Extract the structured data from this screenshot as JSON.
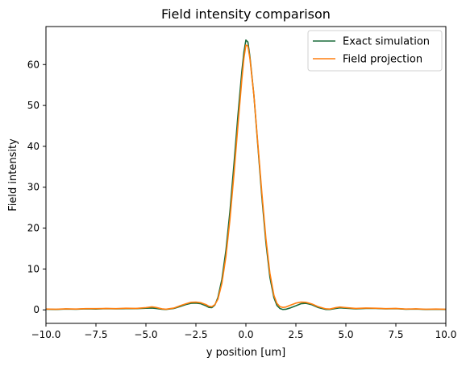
{
  "chart_data": {
    "type": "line",
    "title": "Field intensity comparison",
    "xlabel": "y position [um]",
    "ylabel": "Field intensity",
    "xlim": [
      -10,
      10
    ],
    "ylim": [
      -3.3,
      69.3
    ],
    "xticks": [
      -10,
      -7.5,
      -5,
      -2.5,
      0,
      2.5,
      5,
      7.5,
      10
    ],
    "xtick_labels": [
      "−10.0",
      "−7.5",
      "−5.0",
      "−2.5",
      "0.0",
      "2.5",
      "5.0",
      "7.5",
      "10.0"
    ],
    "yticks": [
      0,
      10,
      20,
      30,
      40,
      50,
      60
    ],
    "ytick_labels": [
      "0",
      "10",
      "20",
      "30",
      "40",
      "50",
      "60"
    ],
    "grid": false,
    "legend_position": "top-right",
    "series": [
      {
        "name": "Exact simulation",
        "color": "#1a6b3a",
        "points": [
          [
            -10,
            0.15
          ],
          [
            -9.5,
            0.1
          ],
          [
            -9,
            0.2
          ],
          [
            -8.5,
            0.15
          ],
          [
            -8,
            0.25
          ],
          [
            -7.5,
            0.2
          ],
          [
            -7,
            0.3
          ],
          [
            -6.5,
            0.25
          ],
          [
            -6,
            0.3
          ],
          [
            -5.5,
            0.3
          ],
          [
            -5,
            0.4
          ],
          [
            -4.7,
            0.45
          ],
          [
            -4.5,
            0.35
          ],
          [
            -4.2,
            0.15
          ],
          [
            -4,
            0.1
          ],
          [
            -3.6,
            0.35
          ],
          [
            -3.3,
            0.8
          ],
          [
            -3,
            1.3
          ],
          [
            -2.75,
            1.6
          ],
          [
            -2.5,
            1.65
          ],
          [
            -2.25,
            1.5
          ],
          [
            -2,
            1.0
          ],
          [
            -1.85,
            0.6
          ],
          [
            -1.7,
            0.55
          ],
          [
            -1.55,
            1.2
          ],
          [
            -1.4,
            3.0
          ],
          [
            -1.2,
            7.5
          ],
          [
            -1.0,
            14.5
          ],
          [
            -0.8,
            24
          ],
          [
            -0.6,
            35.5
          ],
          [
            -0.4,
            47.5
          ],
          [
            -0.2,
            58.5
          ],
          [
            -0.1,
            63
          ],
          [
            0,
            66
          ],
          [
            0.1,
            65.5
          ],
          [
            0.2,
            62
          ],
          [
            0.4,
            52.5
          ],
          [
            0.6,
            40
          ],
          [
            0.8,
            27.5
          ],
          [
            1.0,
            16.5
          ],
          [
            1.2,
            8
          ],
          [
            1.4,
            3.0
          ],
          [
            1.55,
            1.1
          ],
          [
            1.7,
            0.35
          ],
          [
            1.85,
            0.1
          ],
          [
            2.0,
            0.15
          ],
          [
            2.2,
            0.45
          ],
          [
            2.5,
            1.0
          ],
          [
            2.75,
            1.5
          ],
          [
            3.0,
            1.6
          ],
          [
            3.3,
            1.25
          ],
          [
            3.6,
            0.6
          ],
          [
            4.0,
            0.1
          ],
          [
            4.2,
            0.1
          ],
          [
            4.5,
            0.35
          ],
          [
            4.7,
            0.5
          ],
          [
            5.0,
            0.4
          ],
          [
            5.5,
            0.25
          ],
          [
            6.0,
            0.35
          ],
          [
            6.5,
            0.35
          ],
          [
            7.0,
            0.25
          ],
          [
            7.5,
            0.3
          ],
          [
            8.0,
            0.15
          ],
          [
            8.5,
            0.2
          ],
          [
            9.0,
            0.1
          ],
          [
            9.5,
            0.15
          ],
          [
            10,
            0.1
          ]
        ]
      },
      {
        "name": "Field projection",
        "color": "#ff7f0e",
        "points": [
          [
            -10,
            0.2
          ],
          [
            -9.5,
            0.15
          ],
          [
            -9,
            0.25
          ],
          [
            -8.5,
            0.2
          ],
          [
            -8,
            0.3
          ],
          [
            -7.5,
            0.3
          ],
          [
            -7,
            0.35
          ],
          [
            -6.5,
            0.3
          ],
          [
            -6,
            0.4
          ],
          [
            -5.5,
            0.35
          ],
          [
            -5,
            0.55
          ],
          [
            -4.7,
            0.75
          ],
          [
            -4.5,
            0.6
          ],
          [
            -4.2,
            0.25
          ],
          [
            -4,
            0.15
          ],
          [
            -3.6,
            0.45
          ],
          [
            -3.3,
            1.0
          ],
          [
            -3,
            1.5
          ],
          [
            -2.75,
            1.85
          ],
          [
            -2.5,
            1.9
          ],
          [
            -2.25,
            1.75
          ],
          [
            -2,
            1.3
          ],
          [
            -1.85,
            0.9
          ],
          [
            -1.7,
            0.8
          ],
          [
            -1.55,
            1.3
          ],
          [
            -1.4,
            2.6
          ],
          [
            -1.2,
            6.5
          ],
          [
            -1.0,
            13
          ],
          [
            -0.8,
            22
          ],
          [
            -0.6,
            33
          ],
          [
            -0.4,
            45
          ],
          [
            -0.2,
            56.5
          ],
          [
            -0.1,
            61.5
          ],
          [
            0,
            64.8
          ],
          [
            0.1,
            64.5
          ],
          [
            0.2,
            61.5
          ],
          [
            0.4,
            52.5
          ],
          [
            0.6,
            40.5
          ],
          [
            0.8,
            28.5
          ],
          [
            1.0,
            17.5
          ],
          [
            1.2,
            9
          ],
          [
            1.4,
            3.6
          ],
          [
            1.55,
            1.6
          ],
          [
            1.7,
            0.8
          ],
          [
            1.85,
            0.6
          ],
          [
            2.0,
            0.7
          ],
          [
            2.2,
            1.1
          ],
          [
            2.5,
            1.65
          ],
          [
            2.75,
            1.9
          ],
          [
            3.0,
            1.85
          ],
          [
            3.3,
            1.45
          ],
          [
            3.6,
            0.8
          ],
          [
            4.0,
            0.25
          ],
          [
            4.2,
            0.2
          ],
          [
            4.5,
            0.55
          ],
          [
            4.7,
            0.7
          ],
          [
            5.0,
            0.55
          ],
          [
            5.5,
            0.35
          ],
          [
            6.0,
            0.45
          ],
          [
            6.5,
            0.4
          ],
          [
            7.0,
            0.3
          ],
          [
            7.5,
            0.35
          ],
          [
            8.0,
            0.2
          ],
          [
            8.5,
            0.25
          ],
          [
            9.0,
            0.15
          ],
          [
            9.5,
            0.2
          ],
          [
            10,
            0.15
          ]
        ]
      }
    ]
  }
}
